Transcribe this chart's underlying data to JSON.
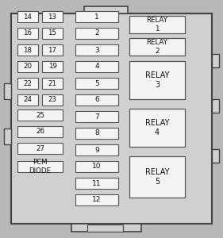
{
  "fig_w": 2.81,
  "fig_h": 3.0,
  "dpi": 100,
  "bg_outer": "#b8b8b8",
  "bg_inner": "#d0d0d0",
  "box_fc": "#f4f4f4",
  "box_ec": "#555555",
  "outer_ec": "#444444",
  "text_color": "#111111",
  "pair_labels": [
    [
      "14",
      "13"
    ],
    [
      "16",
      "15"
    ],
    [
      "18",
      "17"
    ],
    [
      "20",
      "19"
    ],
    [
      "22",
      "21"
    ],
    [
      "24",
      "23"
    ]
  ],
  "single_labels": [
    "25",
    "26",
    "27",
    "PCM\nDIODE"
  ],
  "fuse_labels": [
    "1",
    "2",
    "3",
    "4",
    "5",
    "6",
    "7",
    "8",
    "9",
    "10",
    "11",
    "12"
  ],
  "relay_labels": [
    "RELAY\n1",
    "RELAY\n2",
    "RELAY\n3",
    "RELAY\n4",
    "RELAY\n5"
  ],
  "relay_large": [
    false,
    false,
    true,
    true,
    true
  ]
}
